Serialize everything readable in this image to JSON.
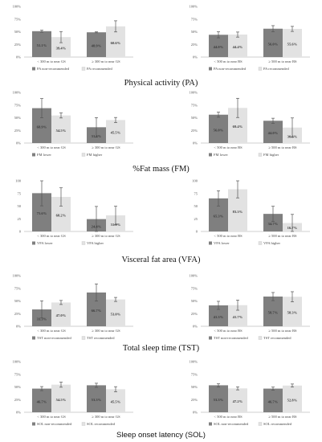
{
  "colors": {
    "series_a": "#7f7f7f",
    "series_b": "#e2e2e2",
    "axis": "#bfbfbf",
    "error": "#555555"
  },
  "titles": [
    "Physical activity (PA)",
    "%Fat mass (FM)",
    "Visceral fat area (VFA)",
    "Total sleep time (TST)",
    "Sleep onset latency (SOL)"
  ],
  "chart_data": [
    {
      "type": "bar",
      "row": 0,
      "col": 0,
      "categories": [
        "< 300 m to near GS",
        "≥ 300 m to near GS"
      ],
      "series": [
        {
          "name": "PA non-recommended",
          "values": [
            51.1,
            48.9
          ],
          "labels": [
            "51.1%",
            "48.9%"
          ],
          "err": [
            2,
            1
          ]
        },
        {
          "name": "PA recommended",
          "values": [
            39.4,
            60.6
          ],
          "labels": [
            "39.4%",
            "60.6%"
          ],
          "err": [
            11,
            11
          ]
        }
      ],
      "yticks": [
        "0%",
        "25%",
        "50%",
        "75%",
        "100%"
      ],
      "ylim": [
        0,
        100
      ],
      "grid": false,
      "legend": "bottom"
    },
    {
      "type": "bar",
      "row": 0,
      "col": 1,
      "categories": [
        "< 500 m to near BS",
        "≥ 500 m to near BS"
      ],
      "series": [
        {
          "name": "PA non-recommended",
          "values": [
            44.0,
            56.0
          ],
          "labels": [
            "44.0%",
            "56.0%"
          ],
          "err": [
            6,
            6
          ]
        },
        {
          "name": "PA recommended",
          "values": [
            44.4,
            55.6
          ],
          "labels": [
            "44.4%",
            "55.6%"
          ],
          "err": [
            5,
            5
          ]
        }
      ],
      "yticks": [
        "0%",
        "25%",
        "50%",
        "75%",
        "100%"
      ],
      "ylim": [
        0,
        100
      ],
      "grid": false,
      "legend": "bottom"
    },
    {
      "type": "bar",
      "row": 1,
      "col": 0,
      "categories": [
        "< 300 m to near GS",
        "≥ 300 m to near GS"
      ],
      "series": [
        {
          "name": "FM lower",
          "values": [
            68.9,
            31.2
          ],
          "labels": [
            "68.9%",
            "31.2%"
          ],
          "err": [
            19,
            19
          ]
        },
        {
          "name": "FM higher",
          "values": [
            54.5,
            45.5
          ],
          "labels": [
            "54.5%",
            "45.5%"
          ],
          "err": [
            5,
            5
          ]
        }
      ],
      "yticks": [
        "0%",
        "25%",
        "50%",
        "75%",
        "100%"
      ],
      "ylim": [
        0,
        100
      ],
      "grid": false,
      "legend": "bottom"
    },
    {
      "type": "bar",
      "row": 1,
      "col": 1,
      "categories": [
        "< 500 m to near BS",
        "≥ 500 m to near BS"
      ],
      "series": [
        {
          "name": "FM lower",
          "values": [
            56.0,
            44.0
          ],
          "labels": [
            "56.0%",
            "44.0%"
          ],
          "err": [
            5,
            5
          ]
        },
        {
          "name": "FM higher",
          "values": [
            69.4,
            30.6
          ],
          "labels": [
            "69.4%",
            "30.6%"
          ],
          "err": [
            19,
            19
          ]
        }
      ],
      "yticks": [
        "0%",
        "25%",
        "50%",
        "75%",
        "100%"
      ],
      "ylim": [
        0,
        100
      ],
      "grid": false,
      "legend": "bottom"
    },
    {
      "type": "bar",
      "row": 2,
      "col": 0,
      "categories": [
        "< 300 m to near GS",
        "≥ 300 m to near GS"
      ],
      "series": [
        {
          "name": "VFA lower",
          "values": [
            75.6,
            24.4
          ],
          "labels": [
            "75.6%",
            "24.4%"
          ],
          "err": [
            25,
            25
          ]
        },
        {
          "name": "VFA higher",
          "values": [
            68.2,
            31.8
          ],
          "labels": [
            "68.2%",
            "31.8%"
          ],
          "err": [
            18,
            18
          ]
        }
      ],
      "yticks": [
        "0",
        "25",
        "50",
        "75",
        "100"
      ],
      "ylim": [
        0,
        100
      ],
      "grid": false,
      "legend": "bottom"
    },
    {
      "type": "bar",
      "row": 2,
      "col": 1,
      "categories": [
        "< 500 m to near BS",
        "≥ 500 m to near BS"
      ],
      "series": [
        {
          "name": "VFA lower",
          "values": [
            65.3,
            34.7
          ],
          "labels": [
            "65.3%",
            "34.7%"
          ],
          "err": [
            15,
            15
          ]
        },
        {
          "name": "VFA higher",
          "values": [
            83.3,
            16.7
          ],
          "labels": [
            "83.3%",
            "16.7%"
          ],
          "err": [
            17,
            17
          ]
        }
      ],
      "yticks": [
        "0",
        "25",
        "50",
        "75",
        "100"
      ],
      "ylim": [
        0,
        100
      ],
      "grid": false,
      "legend": "bottom"
    },
    {
      "type": "bar",
      "row": 3,
      "col": 0,
      "categories": [
        "< 300 m to near GS",
        "≥ 300 m to near GS"
      ],
      "series": [
        {
          "name": "TST non-recommended",
          "values": [
            33.3,
            66.7
          ],
          "labels": [
            "33.3%",
            "66.7%"
          ],
          "err": [
            17,
            17
          ]
        },
        {
          "name": "TST recommended",
          "values": [
            47.0,
            53.0
          ],
          "labels": [
            "47.0%",
            "53.0%"
          ],
          "err": [
            4,
            4
          ]
        }
      ],
      "yticks": [
        "0%",
        "25%",
        "50%",
        "75%",
        "100%"
      ],
      "ylim": [
        0,
        100
      ],
      "grid": false,
      "legend": "bottom"
    },
    {
      "type": "bar",
      "row": 3,
      "col": 1,
      "categories": [
        "< 500 m to near BS",
        "≥ 500 m to near BS"
      ],
      "series": [
        {
          "name": "TST non-recommended",
          "values": [
            41.3,
            58.7
          ],
          "labels": [
            "41.3%",
            "58.7%"
          ],
          "err": [
            8,
            8
          ]
        },
        {
          "name": "TST recommended",
          "values": [
            41.7,
            58.3
          ],
          "labels": [
            "41.7%",
            "58.3%"
          ],
          "err": [
            10,
            10
          ]
        }
      ],
      "yticks": [
        "0%",
        "25%",
        "50%",
        "75%",
        "100%"
      ],
      "ylim": [
        0,
        100
      ],
      "grid": false,
      "legend": "bottom"
    },
    {
      "type": "bar",
      "row": 4,
      "col": 0,
      "categories": [
        "< 300 m to near GS",
        "≥ 300 m to near GS"
      ],
      "series": [
        {
          "name": "SOL non-recommended",
          "values": [
            46.7,
            53.3
          ],
          "labels": [
            "46.7%",
            "53.3%"
          ],
          "err": [
            4,
            4
          ]
        },
        {
          "name": "SOL recommended",
          "values": [
            54.5,
            45.5
          ],
          "labels": [
            "54.5%",
            "45.5%"
          ],
          "err": [
            5,
            5
          ]
        }
      ],
      "yticks": [
        "0%",
        "25%",
        "50%",
        "75%",
        "100%"
      ],
      "ylim": [
        0,
        100
      ],
      "grid": false,
      "legend": "bottom"
    },
    {
      "type": "bar",
      "row": 4,
      "col": 1,
      "categories": [
        "< 500 m to near BS",
        "≥ 500 m to near BS"
      ],
      "series": [
        {
          "name": "SOL non-recommended",
          "values": [
            53.3,
            46.7
          ],
          "labels": [
            "53.3%",
            "46.7%"
          ],
          "err": [
            3,
            3
          ]
        },
        {
          "name": "SOL recommended",
          "values": [
            47.2,
            52.8
          ],
          "labels": [
            "47.2%",
            "52.8%"
          ],
          "err": [
            3,
            3
          ]
        }
      ],
      "yticks": [
        "0%",
        "25%",
        "50%",
        "75%",
        "100%"
      ],
      "ylim": [
        0,
        100
      ],
      "grid": false,
      "legend": "bottom"
    }
  ]
}
